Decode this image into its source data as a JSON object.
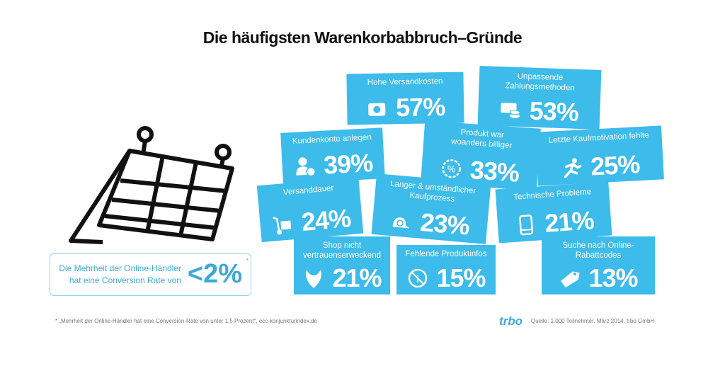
{
  "title": "Die häufigsten Warenkorbabbruch–Gründe",
  "accent_color": "#3dbbea",
  "cards": [
    {
      "label": "Hohe Versandkosten",
      "value": "57%",
      "icon": "money-wallet-icon"
    },
    {
      "label": "Unpassende Zahlungsmethoden",
      "value": "53%",
      "icon": "credit-card-coins-icon"
    },
    {
      "label": "Kundenkonto anlegen",
      "value": "39%",
      "icon": "add-user-icon"
    },
    {
      "label": "Produkt war woanders billiger",
      "value": "33%",
      "icon": "percent-badge-icon"
    },
    {
      "label": "Letzte Kaufmotivation fehlte",
      "value": "25%",
      "icon": "running-person-icon"
    },
    {
      "label": "Versanddauer",
      "value": "24%",
      "icon": "hand-truck-icon"
    },
    {
      "label": "Langer & umständlicher Kaufprozess",
      "value": "23%",
      "icon": "snail-icon"
    },
    {
      "label": "Technische Probleme",
      "value": "21%",
      "icon": "smartphone-icon"
    },
    {
      "label": "Shop nicht vertrauenserweckend",
      "value": "21%",
      "icon": "devil-mask-icon"
    },
    {
      "label": "Fehlende Produktinfos",
      "value": "15%",
      "icon": "no-info-icon"
    },
    {
      "label": "Suche nach Online-Rabattcodes",
      "value": "13%",
      "icon": "price-tag-icon"
    }
  ],
  "conversion": {
    "text_line1": "Die Mehrheit der Online-Händler",
    "text_line2": "hat eine Conversion Rate von",
    "value": "<2%",
    "footnote_mark": "*"
  },
  "footnote": "* „Mehrheit der Online-Händler hat eine Conversion-Rate von unter 1,5 Prozent“, ecc-konjunkturindex.de",
  "logo": "trbo",
  "source": "Quelle: 1.000 Teilnehmer, März 2014, trbo GmbH"
}
